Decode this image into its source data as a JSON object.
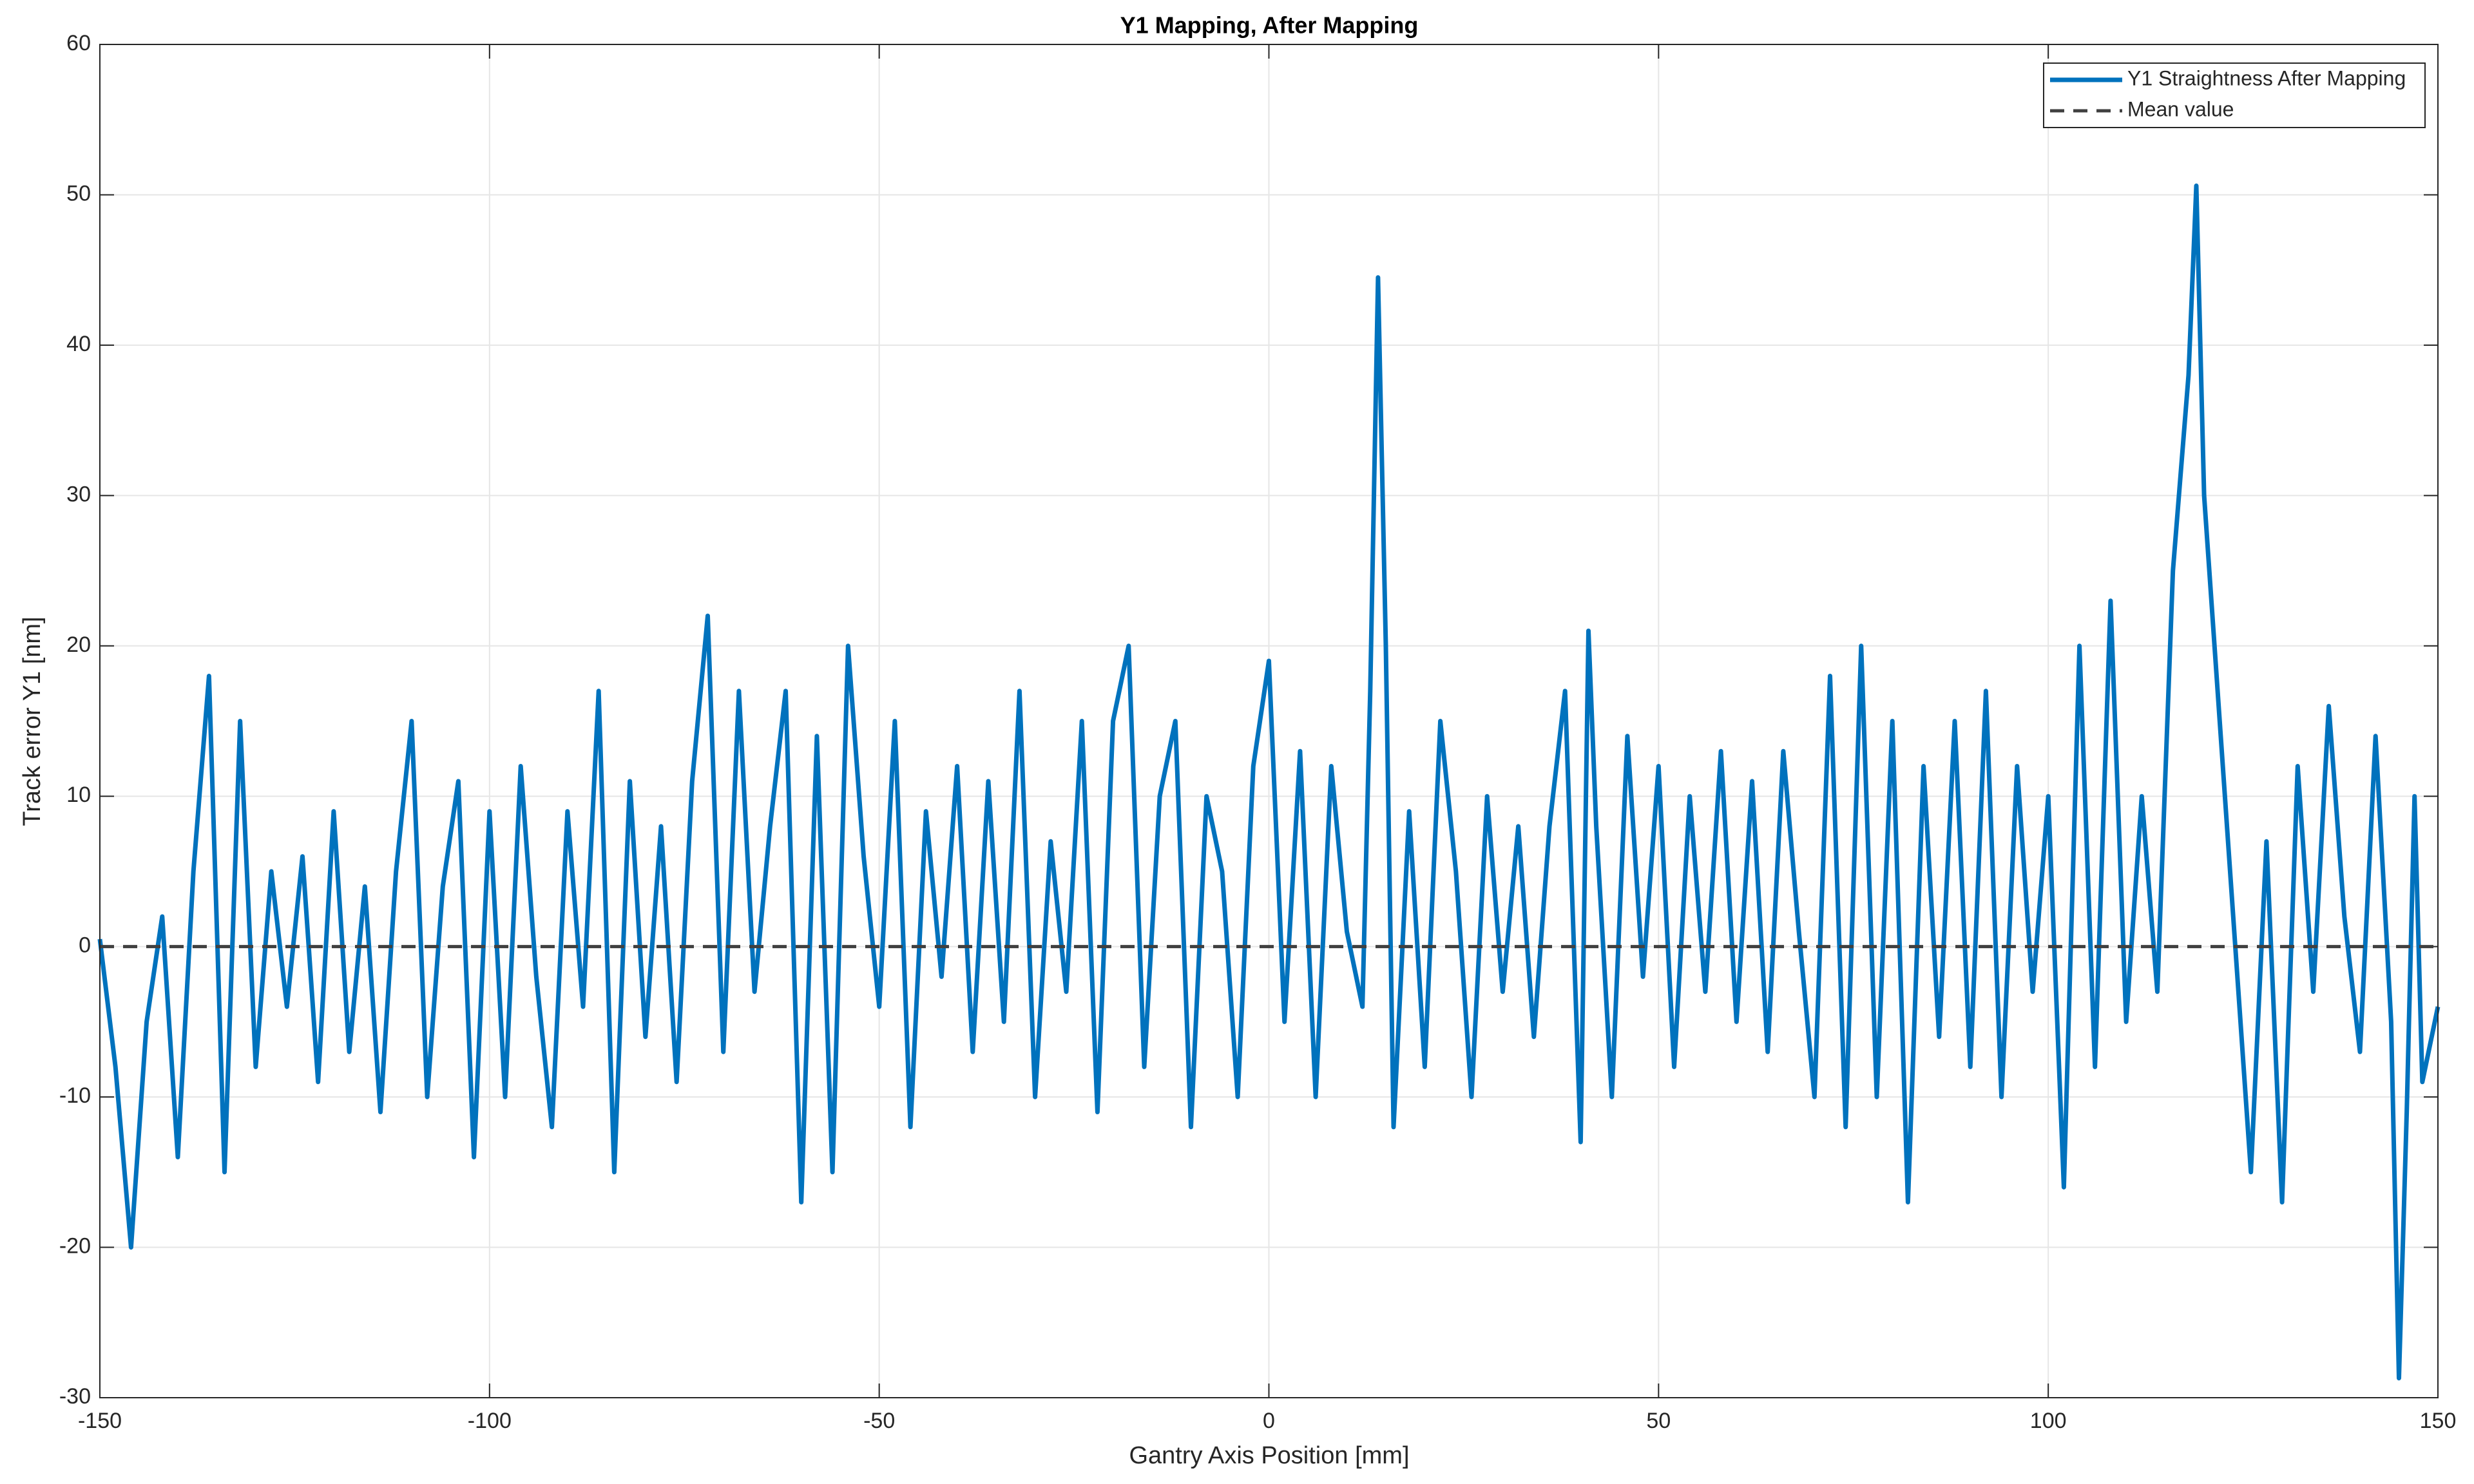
{
  "chart_data": {
    "type": "line",
    "title": "Y1 Mapping, After Mapping",
    "xlabel": "Gantry Axis Position [mm]",
    "ylabel": "Track error Y1 [nm]",
    "x": [
      -150,
      -148,
      -146,
      -144,
      -142,
      -140,
      -138,
      -136,
      -134,
      -132,
      -130,
      -128,
      -126,
      -124,
      -122,
      -120,
      -118,
      -116,
      -114,
      -112,
      -110,
      -108,
      -106,
      -104,
      -102,
      -100,
      -98,
      -96,
      -94,
      -92,
      -90,
      -88,
      -86,
      -84,
      -82,
      -80,
      -78,
      -76,
      -74,
      -72,
      -70,
      -68,
      -66,
      -64,
      -62,
      -60,
      -58,
      -56,
      -54,
      -52,
      -50,
      -48,
      -46,
      -44,
      -42,
      -40,
      -38,
      -36,
      -34,
      -32,
      -30,
      -28,
      -26,
      -24,
      -22,
      -20,
      -18,
      -16,
      -14,
      -12,
      -10,
      -8,
      -6,
      -4,
      -2,
      0,
      2,
      4,
      6,
      8,
      10,
      12,
      13,
      14,
      15,
      16,
      18,
      20,
      22,
      24,
      26,
      28,
      30,
      32,
      34,
      36,
      38,
      40,
      41,
      42,
      44,
      46,
      48,
      50,
      52,
      54,
      56,
      58,
      60,
      62,
      64,
      66,
      68,
      70,
      72,
      74,
      76,
      78,
      80,
      82,
      84,
      86,
      88,
      90,
      92,
      94,
      96,
      98,
      100,
      102,
      104,
      106,
      108,
      110,
      112,
      114,
      116,
      118,
      119,
      120,
      122,
      124,
      126,
      128,
      130,
      132,
      134,
      136,
      138,
      140,
      142,
      144,
      145,
      146,
      147,
      148,
      150
    ],
    "series": [
      {
        "name": "Y1 Straightness After Mapping",
        "color": "#0072bd",
        "values": [
          0.5,
          -8,
          -20,
          -5,
          2,
          -14,
          5,
          18,
          -15,
          15,
          -8,
          5,
          -4,
          6,
          -9,
          9,
          -7,
          4,
          -11,
          5,
          15,
          -10,
          4,
          11,
          -14,
          9,
          -10,
          12,
          -2,
          -12,
          9,
          -4,
          17,
          -15,
          11,
          -6,
          8,
          -9,
          11,
          22,
          -7,
          17,
          -3,
          8,
          17,
          -17,
          14,
          -15,
          20,
          6,
          -4,
          15,
          -12,
          9,
          -2,
          12,
          -7,
          11,
          -5,
          17,
          -10,
          7,
          -3,
          15,
          -11,
          15,
          20,
          -8,
          10,
          15,
          -12,
          10,
          5,
          -10,
          12,
          19,
          -5,
          13,
          -10,
          12,
          1,
          -4,
          17,
          44.5,
          20,
          -12,
          9,
          -8,
          15,
          5,
          -10,
          10,
          -3,
          8,
          -6,
          8,
          17,
          -13,
          21,
          8,
          -10,
          14,
          -2,
          12,
          -8,
          10,
          -3,
          13,
          -5,
          11,
          -7,
          13,
          1,
          -10,
          18,
          -12,
          20,
          -10,
          15,
          -17,
          12,
          -6,
          15,
          -8,
          17,
          -10,
          12,
          -3,
          10,
          -16,
          20,
          -8,
          23,
          -5,
          10,
          -3,
          25,
          38,
          50.6,
          30,
          15,
          0,
          -15,
          7,
          -17,
          12,
          -3,
          16,
          2,
          -7,
          14,
          -5,
          -28.7,
          -11,
          10,
          -9,
          -4
        ]
      }
    ],
    "mean_line": {
      "name": "Mean value",
      "value": 0,
      "color": "#404040"
    },
    "xlim": [
      -150,
      150
    ],
    "xticks": [
      -150,
      -100,
      -50,
      0,
      50,
      100,
      150
    ],
    "ylim": [
      -30,
      60
    ],
    "yticks": [
      -30,
      -20,
      -10,
      0,
      10,
      20,
      30,
      40,
      50,
      60
    ],
    "grid": true,
    "legend": "top-right"
  }
}
